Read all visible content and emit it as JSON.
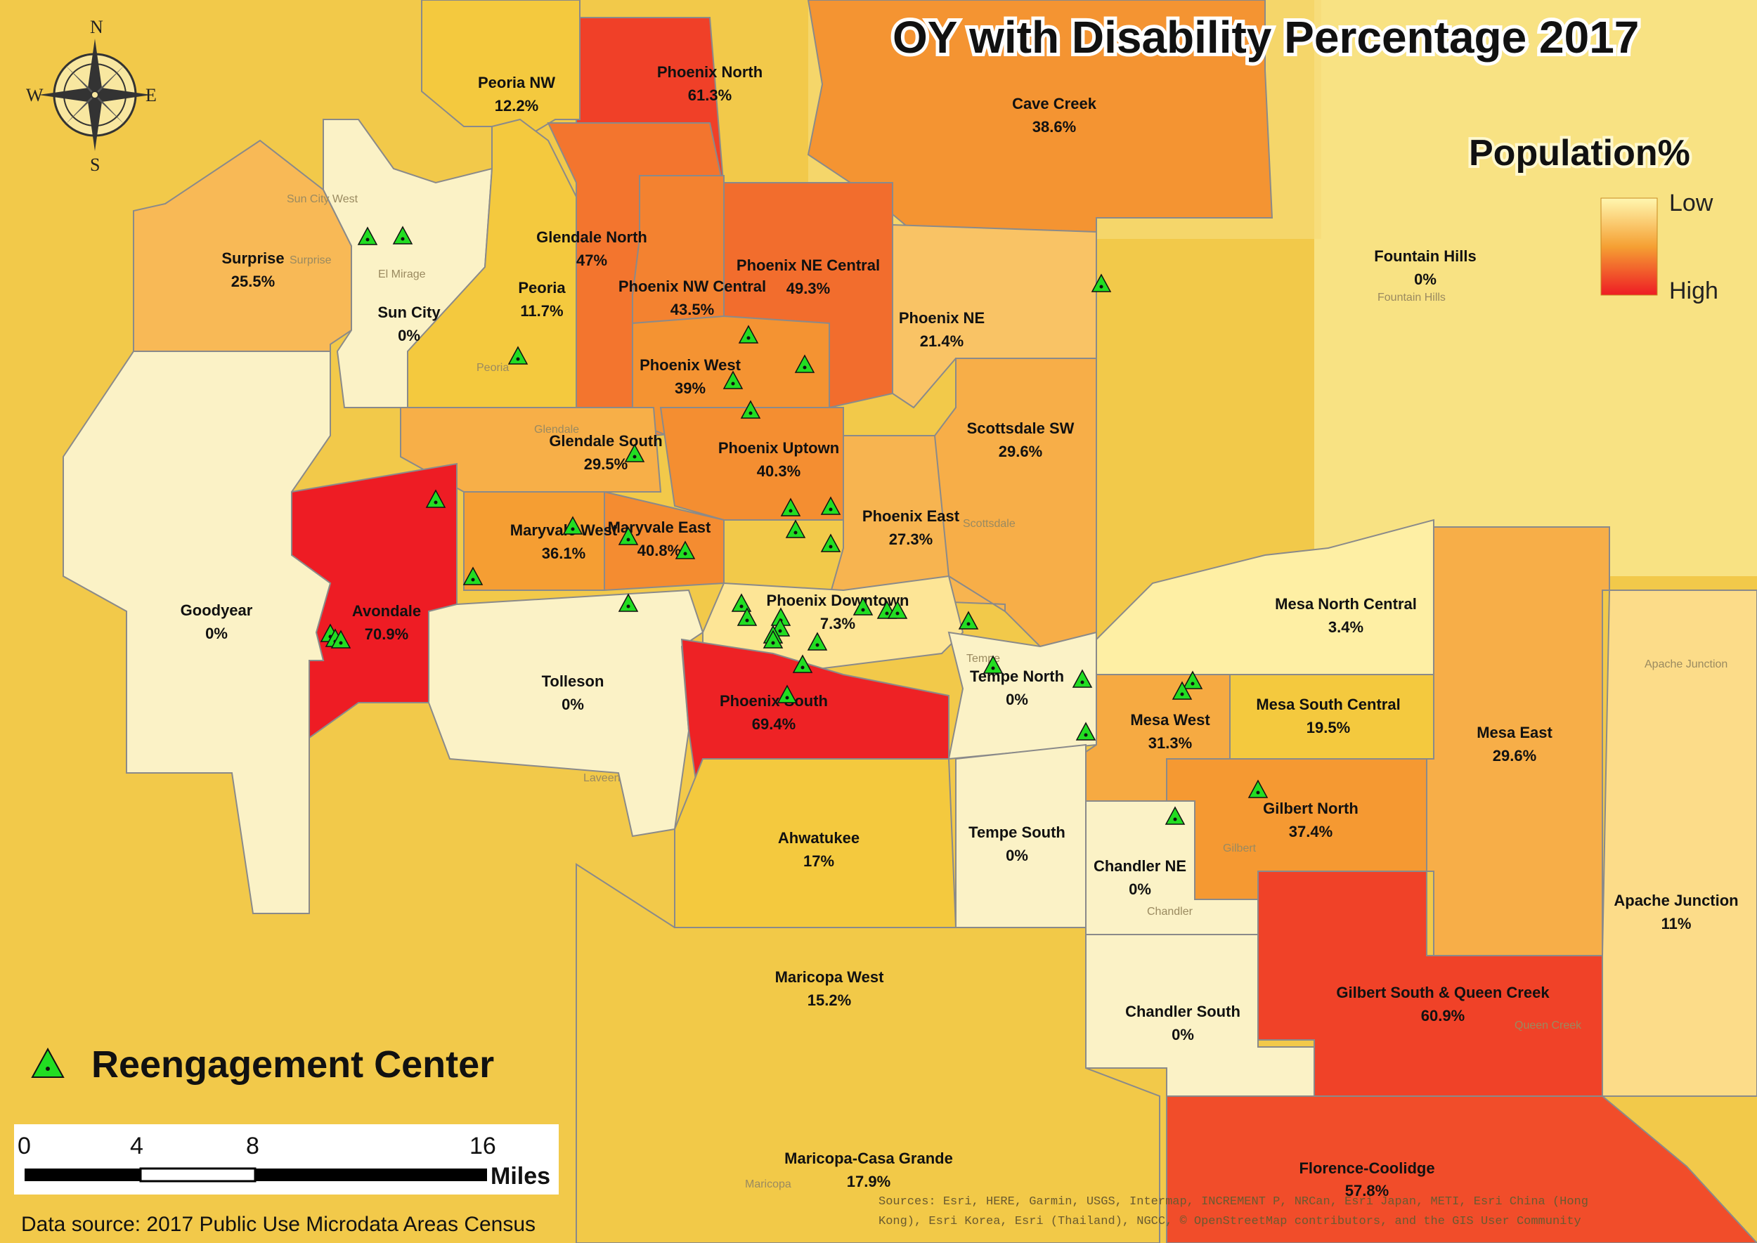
{
  "title": "OY with Disability Percentage 2017",
  "legend": {
    "title": "Population%",
    "low": "Low",
    "high": "High",
    "colors": {
      "low": "#fff7b0",
      "mid": "#f5a033",
      "high": "#ee1c24"
    }
  },
  "compass": {
    "n": "N",
    "s": "S",
    "e": "E",
    "w": "W"
  },
  "marker_legend": {
    "label": "Reengagement Center",
    "color": "#22dd22"
  },
  "scalebar": {
    "ticks": [
      "0",
      "4",
      "8",
      "16"
    ],
    "unit": "Miles"
  },
  "data_source": "Data source: 2017 Public Use Microdata Areas Census",
  "attribution": {
    "line1": "Sources: Esri, HERE, Garmin, USGS, Intermap, INCREMENT P, NRCan, Esri Japan, METI, Esri China (Hong",
    "line2": "Kong), Esri Korea, Esri (Thailand), NGCC, © OpenStreetMap contributors, and the GIS User Community"
  },
  "base_map_labels": [
    "Surprise",
    "El Mirage",
    "Sun City West",
    "Peoria",
    "Glendale",
    "Scottsdale",
    "Tempe",
    "Gilbert",
    "Chandler",
    "Fountain Hills",
    "Laveen",
    "Queen Creek",
    "Apache Junction",
    "Maricopa"
  ],
  "regions": [
    {
      "name": "Phoenix North",
      "pct": "61.3%",
      "value": 61.3
    },
    {
      "name": "Peoria NW",
      "pct": "12.2%",
      "value": 12.2
    },
    {
      "name": "Cave Creek",
      "pct": "38.6%",
      "value": 38.6
    },
    {
      "name": "Glendale North",
      "pct": "47%",
      "value": 47
    },
    {
      "name": "Phoenix NE Central",
      "pct": "49.3%",
      "value": 49.3
    },
    {
      "name": "Surprise",
      "pct": "25.5%",
      "value": 25.5
    },
    {
      "name": "Sun City",
      "pct": "0%",
      "value": 0
    },
    {
      "name": "Peoria",
      "pct": "11.7%",
      "value": 11.7
    },
    {
      "name": "Phoenix NW Central",
      "pct": "43.5%",
      "value": 43.5
    },
    {
      "name": "Phoenix NE",
      "pct": "21.4%",
      "value": 21.4
    },
    {
      "name": "Fountain Hills",
      "pct": "0%",
      "value": 0
    },
    {
      "name": "Phoenix West",
      "pct": "39%",
      "value": 39
    },
    {
      "name": "Glendale South",
      "pct": "29.5%",
      "value": 29.5
    },
    {
      "name": "Scottsdale SW",
      "pct": "29.6%",
      "value": 29.6
    },
    {
      "name": "Phoenix Uptown",
      "pct": "40.3%",
      "value": 40.3
    },
    {
      "name": "Maryvale West",
      "pct": "36.1%",
      "value": 36.1
    },
    {
      "name": "Maryvale East",
      "pct": "40.8%",
      "value": 40.8
    },
    {
      "name": "Phoenix East",
      "pct": "27.3%",
      "value": 27.3
    },
    {
      "name": "Goodyear",
      "pct": "0%",
      "value": 0
    },
    {
      "name": "Avondale",
      "pct": "70.9%",
      "value": 70.9
    },
    {
      "name": "Phoenix Downtown",
      "pct": "7.3%",
      "value": 7.3
    },
    {
      "name": "Mesa North Central",
      "pct": "3.4%",
      "value": 3.4
    },
    {
      "name": "Tolleson",
      "pct": "0%",
      "value": 0
    },
    {
      "name": "Tempe North",
      "pct": "0%",
      "value": 0
    },
    {
      "name": "Phoenix South",
      "pct": "69.4%",
      "value": 69.4
    },
    {
      "name": "Mesa West",
      "pct": "31.3%",
      "value": 31.3
    },
    {
      "name": "Mesa South Central",
      "pct": "19.5%",
      "value": 19.5
    },
    {
      "name": "Mesa East",
      "pct": "29.6%",
      "value": 29.6
    },
    {
      "name": "Gilbert North",
      "pct": "37.4%",
      "value": 37.4
    },
    {
      "name": "Ahwatukee",
      "pct": "17%",
      "value": 17
    },
    {
      "name": "Tempe South",
      "pct": "0%",
      "value": 0
    },
    {
      "name": "Chandler NE",
      "pct": "0%",
      "value": 0
    },
    {
      "name": "Apache Junction",
      "pct": "11%",
      "value": 11
    },
    {
      "name": "Maricopa West",
      "pct": "15.2%",
      "value": 15.2
    },
    {
      "name": "Gilbert South & Queen Creek",
      "pct": "60.9%",
      "value": 60.9
    },
    {
      "name": "Chandler South",
      "pct": "0%",
      "value": 0
    },
    {
      "name": "Maricopa-Casa Grande",
      "pct": "17.9%",
      "value": 17.9
    },
    {
      "name": "Florence-Coolidge",
      "pct": "57.8%",
      "value": 57.8
    }
  ]
}
